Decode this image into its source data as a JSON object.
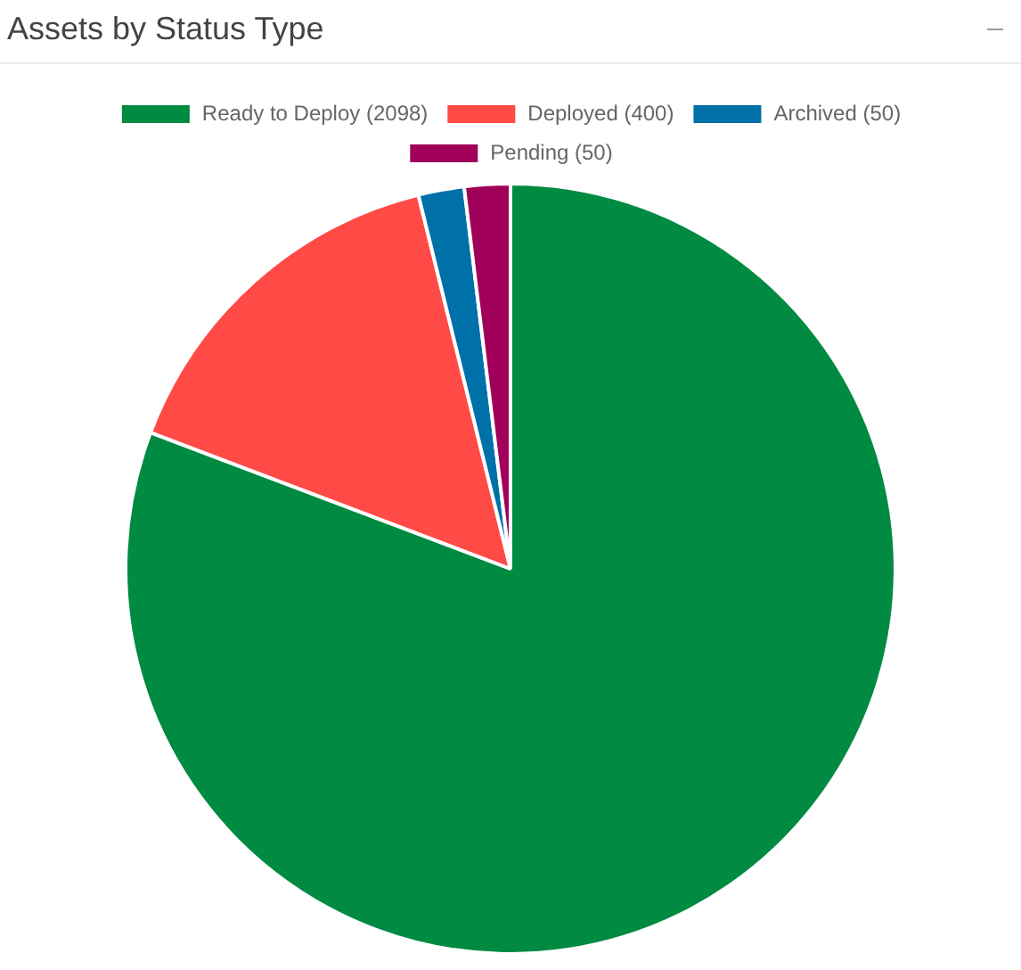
{
  "chart_data": {
    "type": "pie",
    "title": "Assets by Status Type",
    "categories": [
      "Ready to Deploy (2098)",
      "Deployed (400)",
      "Archived (50)",
      "Pending (50)"
    ],
    "values": [
      2098,
      400,
      50,
      50
    ],
    "colors": [
      "#008a42",
      "#ff4a46",
      "#0070a8",
      "#a0005a"
    ],
    "legend": "top"
  }
}
